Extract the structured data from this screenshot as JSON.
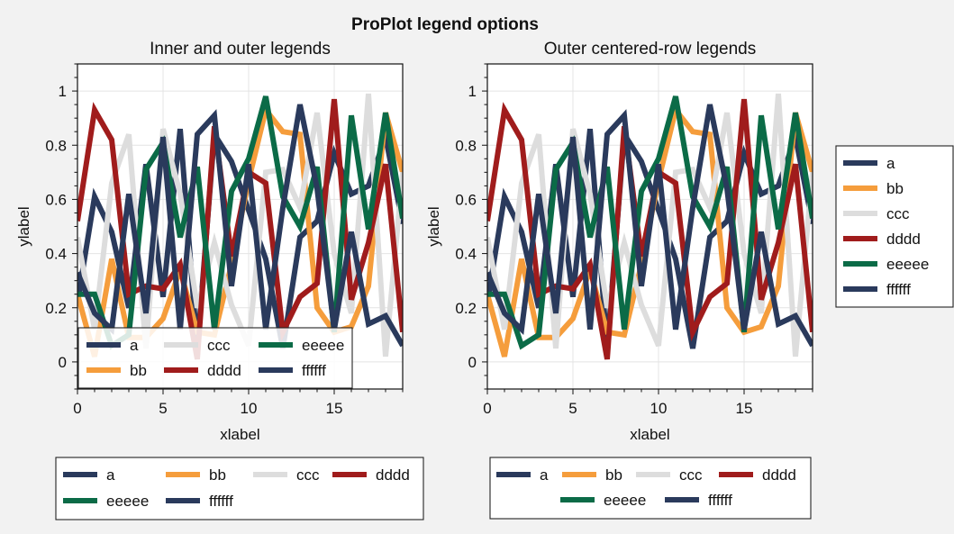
{
  "figure": {
    "suptitle": "ProPlot legend options"
  },
  "chart_data": [
    {
      "type": "line",
      "title": "Inner and outer legends",
      "xlabel": "xlabel",
      "ylabel": "ylabel",
      "xlim": [
        0,
        19
      ],
      "ylim": [
        -0.1,
        1.1
      ],
      "xticks": [
        0,
        5,
        10,
        15
      ],
      "yticks": [
        0,
        0.2,
        0.4,
        0.6,
        0.8,
        1
      ],
      "ytick_labels": [
        "0",
        "0.2",
        "0.4",
        "0.6",
        "0.8",
        "1"
      ],
      "grid": true,
      "legends": [
        {
          "placement": "lower-left-inside",
          "ncol": 3,
          "entries": [
            "a",
            "ccc",
            "eeeee",
            "bb",
            "dddd",
            "ffffff"
          ]
        },
        {
          "placement": "bottom-outside",
          "ncol": 4,
          "entries": [
            "a",
            "bb",
            "ccc",
            "dddd",
            "eeeee",
            "ffffff"
          ]
        }
      ]
    },
    {
      "type": "line",
      "title": "Outer centered-row legends",
      "xlabel": "xlabel",
      "ylabel": "ylabel",
      "xlim": [
        0,
        19
      ],
      "ylim": [
        -0.1,
        1.1
      ],
      "xticks": [
        0,
        5,
        10,
        15
      ],
      "yticks": [
        0,
        0.2,
        0.4,
        0.6,
        0.8,
        1
      ],
      "ytick_labels": [
        "0",
        "0.2",
        "0.4",
        "0.6",
        "0.8",
        "1"
      ],
      "grid": true,
      "legends": [
        {
          "placement": "bottom-outside-centered-rows",
          "rows": [
            [
              "a",
              "bb",
              "ccc",
              "dddd"
            ],
            [
              "eeeee",
              "ffffff"
            ]
          ]
        },
        {
          "placement": "right-outside",
          "ncol": 1,
          "entries": [
            "a",
            "bb",
            "ccc",
            "dddd",
            "eeeee",
            "ffffff"
          ]
        }
      ]
    }
  ],
  "series": [
    {
      "name": "a",
      "color": "#2a3a5c",
      "values": [
        0.22,
        0.61,
        0.48,
        0.2,
        0.73,
        0.24,
        0.86,
        0.05,
        0.84,
        0.74,
        0.56,
        0.38,
        0.05,
        0.46,
        0.52,
        0.77,
        0.62,
        0.65,
        0.83,
        0.51
      ]
    },
    {
      "name": "bb",
      "color": "#f59d3c",
      "values": [
        0.25,
        0.02,
        0.38,
        0.09,
        0.09,
        0.16,
        0.34,
        0.11,
        0.1,
        0.36,
        0.67,
        0.93,
        0.85,
        0.84,
        0.2,
        0.11,
        0.13,
        0.28,
        0.92,
        0.7
      ]
    },
    {
      "name": "ccc",
      "color": "#dddddd",
      "values": [
        0.46,
        0.12,
        0.66,
        0.84,
        0.05,
        0.86,
        0.62,
        0.2,
        0.44,
        0.21,
        0.06,
        0.7,
        0.71,
        0.57,
        0.92,
        0.4,
        0.18,
        0.99,
        0.02,
        0.7
      ]
    },
    {
      "name": "dddd",
      "color": "#a01c1c",
      "values": [
        0.52,
        0.93,
        0.82,
        0.25,
        0.28,
        0.27,
        0.36,
        0.01,
        0.87,
        0.39,
        0.7,
        0.66,
        0.11,
        0.24,
        0.29,
        0.97,
        0.23,
        0.44,
        0.73,
        0.11
      ]
    },
    {
      "name": "eeeee",
      "color": "#0b6b47",
      "values": [
        0.25,
        0.25,
        0.06,
        0.1,
        0.71,
        0.81,
        0.46,
        0.72,
        0.12,
        0.63,
        0.75,
        0.98,
        0.61,
        0.5,
        0.72,
        0.11,
        0.91,
        0.49,
        0.92,
        0.53
      ]
    },
    {
      "name": "ffffff",
      "color": "#2a3a5c",
      "values": [
        0.33,
        0.18,
        0.12,
        0.62,
        0.18,
        0.83,
        0.12,
        0.84,
        0.91,
        0.28,
        0.73,
        0.12,
        0.57,
        0.95,
        0.64,
        0.12,
        0.48,
        0.14,
        0.17,
        0.06
      ]
    }
  ]
}
